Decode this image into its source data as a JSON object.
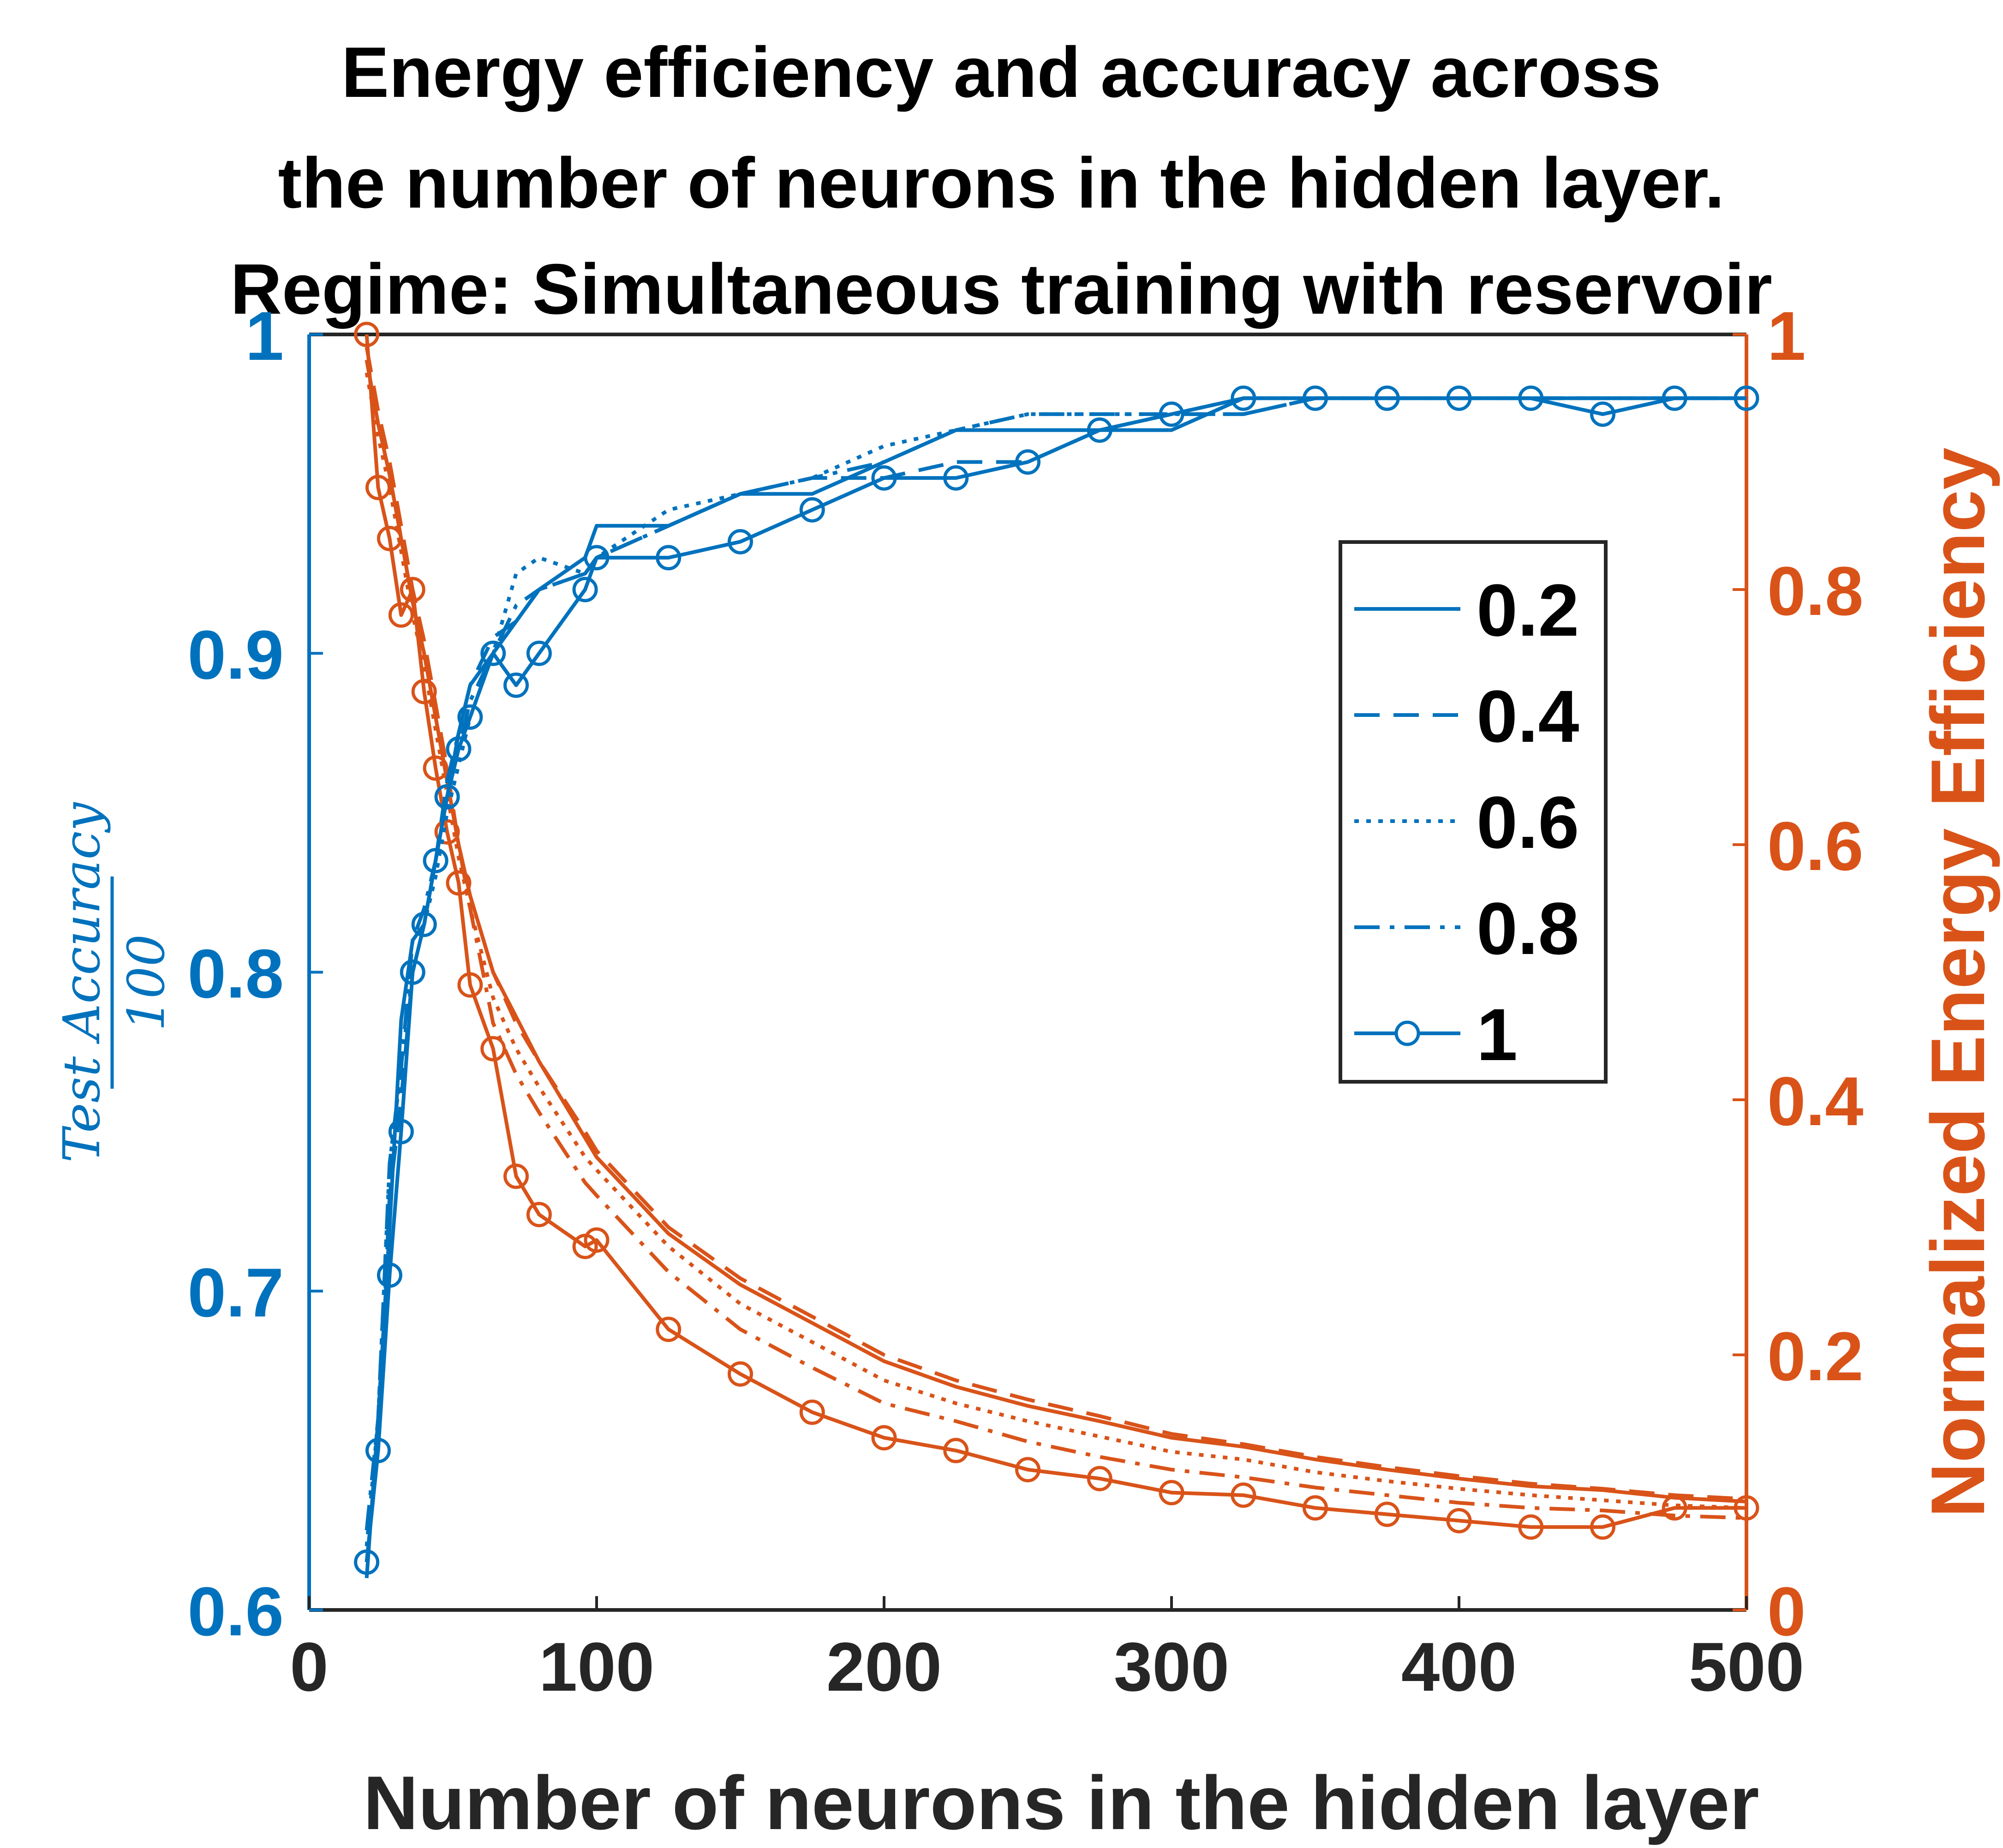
{
  "chart_data": {
    "type": "line",
    "title": [
      "Energy efficiency and accuracy across",
      "the number of neurons in the hidden layer.",
      "Regime: Simultaneous training with reservoir"
    ],
    "xlabel": "Number of neurons in the hidden layer",
    "ylabel_left": {
      "numerator": "Test Accuracy",
      "denominator": "100"
    },
    "ylabel_right": "Normalized Energy Efficiency",
    "xlim": [
      0,
      500
    ],
    "ylim_left": [
      0.6,
      1
    ],
    "ylim_right": [
      0,
      1
    ],
    "xticks": [
      {
        "value": 0,
        "label": "0"
      },
      {
        "value": 100,
        "label": "100"
      },
      {
        "value": 200,
        "label": "200"
      },
      {
        "value": 300,
        "label": "300"
      },
      {
        "value": 400,
        "label": "400"
      },
      {
        "value": 500,
        "label": "500"
      }
    ],
    "yticks_left": [
      {
        "value": 0.6,
        "label": "0.6"
      },
      {
        "value": 0.7,
        "label": "0.7"
      },
      {
        "value": 0.8,
        "label": "0.8"
      },
      {
        "value": 0.9,
        "label": "0.9"
      },
      {
        "value": 1,
        "label": "1"
      }
    ],
    "yticks_right": [
      {
        "value": 0,
        "label": "0"
      },
      {
        "value": 0.2,
        "label": "0.2"
      },
      {
        "value": 0.4,
        "label": "0.4"
      },
      {
        "value": 0.6,
        "label": "0.6"
      },
      {
        "value": 0.8,
        "label": "0.8"
      },
      {
        "value": 1,
        "label": "1"
      }
    ],
    "grid": false,
    "legend_position": "upper-right",
    "colors": {
      "accuracy": "#0072BD",
      "energy": "#D95319",
      "axes": "#262626"
    },
    "x": [
      20,
      24,
      28,
      32,
      36,
      40,
      44,
      48,
      52,
      56,
      64,
      72,
      80,
      96,
      100,
      125,
      150,
      175,
      200,
      225,
      250,
      275,
      300,
      325,
      350,
      375,
      400,
      425,
      450,
      475,
      500
    ],
    "series": [
      {
        "name": "0.2",
        "style": "solid",
        "markers": false,
        "accuracy": [
          0.61,
          0.66,
          0.72,
          0.785,
          0.81,
          0.815,
          0.835,
          0.855,
          0.875,
          0.89,
          0.9,
          0.91,
          0.92,
          0.93,
          0.94,
          0.94,
          0.95,
          0.95,
          0.96,
          0.97,
          0.97,
          0.97,
          0.97,
          0.98,
          0.98,
          0.98,
          0.98,
          0.98,
          0.98,
          0.98,
          0.98
        ],
        "energy": [
          0.98,
          0.93,
          0.89,
          0.84,
          0.79,
          0.75,
          0.7,
          0.65,
          0.6,
          0.56,
          0.5,
          0.465,
          0.43,
          0.37,
          0.355,
          0.295,
          0.255,
          0.225,
          0.195,
          0.175,
          0.16,
          0.148,
          0.135,
          0.128,
          0.118,
          0.11,
          0.103,
          0.097,
          0.094,
          0.088,
          0.085
        ]
      },
      {
        "name": "0.4",
        "style": "dashed",
        "markers": false,
        "accuracy": [
          0.615,
          0.65,
          0.73,
          0.76,
          0.8,
          0.815,
          0.835,
          0.86,
          0.875,
          0.89,
          0.905,
          0.91,
          0.92,
          0.925,
          0.93,
          0.94,
          0.95,
          0.955,
          0.955,
          0.96,
          0.96,
          0.97,
          0.975,
          0.975,
          0.98,
          0.98,
          0.98,
          0.98,
          0.98,
          0.98,
          0.98
        ],
        "energy": [
          0.99,
          0.94,
          0.9,
          0.85,
          0.8,
          0.76,
          0.71,
          0.66,
          0.6,
          0.56,
          0.5,
          0.46,
          0.43,
          0.375,
          0.36,
          0.3,
          0.26,
          0.23,
          0.2,
          0.18,
          0.165,
          0.152,
          0.138,
          0.13,
          0.12,
          0.112,
          0.105,
          0.099,
          0.095,
          0.09,
          0.087
        ]
      },
      {
        "name": "0.6",
        "style": "dotted",
        "markers": false,
        "accuracy": [
          0.62,
          0.66,
          0.74,
          0.77,
          0.8,
          0.815,
          0.83,
          0.85,
          0.865,
          0.88,
          0.9,
          0.925,
          0.93,
          0.925,
          0.93,
          0.945,
          0.95,
          0.955,
          0.965,
          0.97,
          0.975,
          0.975,
          0.975,
          0.98,
          0.98,
          0.98,
          0.98,
          0.98,
          0.98,
          0.98,
          0.98
        ],
        "energy": [
          0.97,
          0.92,
          0.88,
          0.83,
          0.78,
          0.74,
          0.69,
          0.64,
          0.59,
          0.55,
          0.48,
          0.44,
          0.41,
          0.355,
          0.345,
          0.285,
          0.24,
          0.21,
          0.18,
          0.162,
          0.148,
          0.136,
          0.124,
          0.118,
          0.108,
          0.101,
          0.095,
          0.09,
          0.086,
          0.082,
          0.08
        ]
      },
      {
        "name": "0.8",
        "style": "dashdot",
        "markers": false,
        "accuracy": [
          0.625,
          0.66,
          0.74,
          0.77,
          0.81,
          0.82,
          0.835,
          0.855,
          0.87,
          0.885,
          0.9,
          0.915,
          0.92,
          0.925,
          0.93,
          0.94,
          0.95,
          0.955,
          0.96,
          0.97,
          0.975,
          0.975,
          0.975,
          0.975,
          0.98,
          0.98,
          0.98,
          0.98,
          0.98,
          0.98,
          0.98
        ],
        "energy": [
          0.98,
          0.93,
          0.89,
          0.84,
          0.79,
          0.75,
          0.7,
          0.65,
          0.6,
          0.55,
          0.46,
          0.42,
          0.39,
          0.335,
          0.325,
          0.265,
          0.22,
          0.19,
          0.162,
          0.148,
          0.132,
          0.12,
          0.11,
          0.104,
          0.096,
          0.09,
          0.084,
          0.08,
          0.078,
          0.074,
          0.072
        ]
      },
      {
        "name": "1",
        "style": "solid",
        "markers": true,
        "accuracy": [
          0.615,
          0.65,
          0.705,
          0.75,
          0.8,
          0.815,
          0.835,
          0.855,
          0.87,
          0.88,
          0.9,
          0.89,
          0.9,
          0.92,
          0.93,
          0.93,
          0.935,
          0.945,
          0.955,
          0.955,
          0.96,
          0.97,
          0.975,
          0.98,
          0.98,
          0.98,
          0.98,
          0.98,
          0.975,
          0.98,
          0.98
        ],
        "energy": [
          1.0,
          0.88,
          0.84,
          0.78,
          0.8,
          0.72,
          0.66,
          0.61,
          0.57,
          0.49,
          0.44,
          0.34,
          0.31,
          0.285,
          0.29,
          0.22,
          0.185,
          0.155,
          0.135,
          0.125,
          0.11,
          0.103,
          0.092,
          0.09,
          0.08,
          0.075,
          0.07,
          0.065,
          0.065,
          0.08,
          0.08
        ]
      }
    ]
  }
}
